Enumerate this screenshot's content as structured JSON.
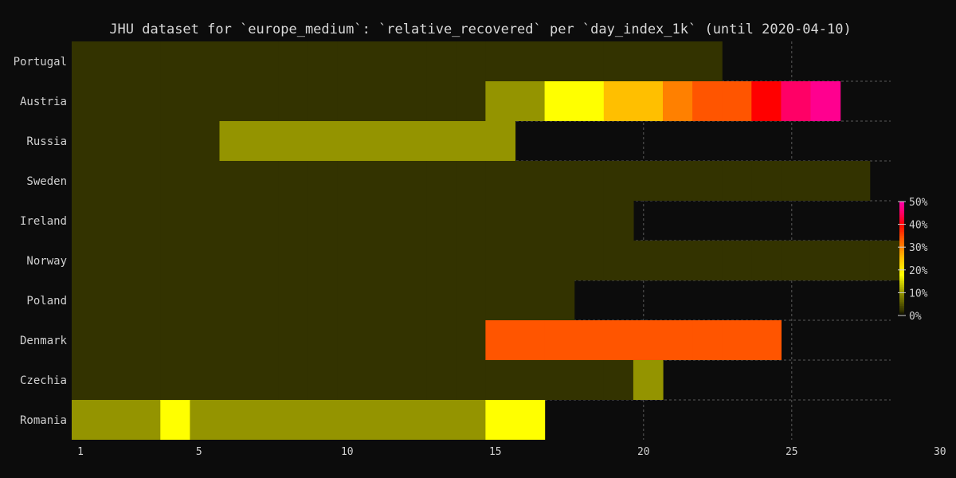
{
  "chart_data": {
    "type": "heatmap",
    "title": "JHU dataset for `europe_medium`: `relative_recovered` per `day_index_1k` (until 2020-04-10)",
    "xlabel": "",
    "ylabel": "",
    "x_ticks": [
      1,
      5,
      10,
      15,
      20,
      25,
      30
    ],
    "x_range": [
      1,
      30
    ],
    "grid": true,
    "legend": "right",
    "colorbar": {
      "ticks": [
        "0%",
        "10%",
        "20%",
        "30%",
        "40%",
        "50%"
      ],
      "range": [
        0,
        50
      ],
      "stops": [
        {
          "v": 0,
          "color": "#000000"
        },
        {
          "v": 2,
          "color": "#333300"
        },
        {
          "v": 10,
          "color": "#949400"
        },
        {
          "v": 18,
          "color": "#ffff00"
        },
        {
          "v": 25,
          "color": "#ffbf00"
        },
        {
          "v": 30,
          "color": "#ff8000"
        },
        {
          "v": 34,
          "color": "#ff5500"
        },
        {
          "v": 40,
          "color": "#ff0000"
        },
        {
          "v": 45,
          "color": "#ff0066"
        },
        {
          "v": 50,
          "color": "#ff00aa"
        }
      ]
    },
    "rows": [
      {
        "name": "Portugal",
        "values": [
          2,
          2,
          2,
          2,
          2,
          2,
          2,
          2,
          2,
          2,
          2,
          2,
          2,
          2,
          2,
          2,
          2,
          2,
          2,
          2,
          2,
          2
        ]
      },
      {
        "name": "Austria",
        "values": [
          2,
          2,
          2,
          2,
          2,
          2,
          2,
          2,
          2,
          2,
          2,
          2,
          2,
          2,
          10,
          10,
          18,
          18,
          25,
          25,
          30,
          34,
          34,
          40,
          45,
          48
        ]
      },
      {
        "name": "Russia",
        "values": [
          2,
          2,
          2,
          2,
          2,
          10,
          10,
          10,
          10,
          10,
          10,
          10,
          10,
          10,
          10
        ]
      },
      {
        "name": "Sweden",
        "values": [
          2,
          2,
          2,
          2,
          2,
          2,
          2,
          2,
          2,
          2,
          2,
          2,
          2,
          2,
          2,
          2,
          2,
          2,
          2,
          2,
          2,
          2,
          2,
          2,
          2,
          2,
          2
        ]
      },
      {
        "name": "Ireland",
        "values": [
          2,
          2,
          2,
          2,
          2,
          2,
          2,
          2,
          2,
          2,
          2,
          2,
          2,
          2,
          2,
          2,
          2,
          2,
          2
        ]
      },
      {
        "name": "Norway",
        "values": [
          2,
          2,
          2,
          2,
          2,
          2,
          2,
          2,
          2,
          2,
          2,
          2,
          2,
          2,
          2,
          2,
          2,
          2,
          2,
          2,
          2,
          2,
          2,
          2,
          2,
          2,
          2,
          2
        ]
      },
      {
        "name": "Poland",
        "values": [
          2,
          2,
          2,
          2,
          2,
          2,
          2,
          2,
          2,
          2,
          2,
          2,
          2,
          2,
          2,
          2,
          2
        ]
      },
      {
        "name": "Denmark",
        "values": [
          2,
          2,
          2,
          2,
          2,
          2,
          2,
          2,
          2,
          2,
          2,
          2,
          2,
          2,
          34,
          34,
          34,
          34,
          34,
          34,
          34,
          34,
          34,
          34
        ]
      },
      {
        "name": "Czechia",
        "values": [
          2,
          2,
          2,
          2,
          2,
          2,
          2,
          2,
          2,
          2,
          2,
          2,
          2,
          2,
          2,
          2,
          2,
          2,
          2,
          10
        ]
      },
      {
        "name": "Romania",
        "values": [
          10,
          10,
          10,
          18,
          10,
          10,
          10,
          10,
          10,
          10,
          10,
          10,
          10,
          10,
          18,
          18
        ]
      }
    ]
  }
}
